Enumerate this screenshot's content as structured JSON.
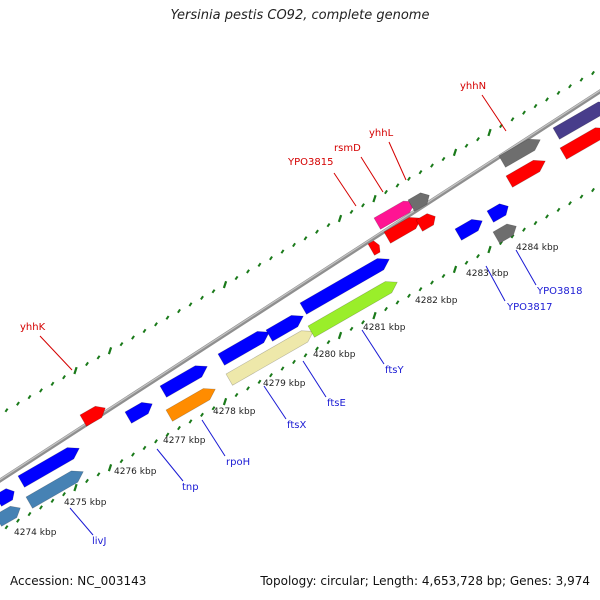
{
  "title": "Yersinia pestis CO92, complete genome",
  "footer": {
    "accession": "Accession: NC_003143",
    "summary": "Topology: circular; Length: 4,653,728 bp; Genes: 3,974"
  },
  "colors": {
    "backbone": "#8a8a8a",
    "tick": "#1a7a1a",
    "forward_label": "#d40000",
    "reverse_label": "#1a1ad4"
  },
  "scale_labels": [
    "4274 kbp",
    "4275 kbp",
    "4276 kbp",
    "4277 kbp",
    "4278 kbp",
    "4279 kbp",
    "4280 kbp",
    "4281 kbp",
    "4282 kbp",
    "4283 kbp",
    "4284 kbp"
  ],
  "labels": {
    "top": [
      "yhhK",
      "YPO3815",
      "rsmD",
      "yhhL",
      "yhhN"
    ],
    "bottom": [
      "livJ",
      "tnp",
      "rpoH",
      "ftsX",
      "ftsE",
      "ftsY",
      "YPO3817",
      "YPO3818"
    ]
  },
  "features": [
    {
      "strand": "forward",
      "color": "#ff0000"
    },
    {
      "strand": "forward",
      "color": "#ff0000"
    },
    {
      "strand": "forward",
      "color": "#ff1493"
    },
    {
      "strand": "forward",
      "color": "#6e6e6e"
    },
    {
      "strand": "forward",
      "color": "#ff0000"
    },
    {
      "strand": "forward",
      "color": "#ff0000"
    },
    {
      "strand": "forward",
      "color": "#6e6e6e"
    },
    {
      "strand": "forward",
      "color": "#ff0000"
    },
    {
      "strand": "forward",
      "color": "#483d8b"
    },
    {
      "strand": "forward",
      "color": "#ff0000"
    },
    {
      "strand": "reverse",
      "color": "#0000ff"
    },
    {
      "strand": "reverse",
      "color": "#0000ff"
    },
    {
      "strand": "reverse",
      "color": "#0000ff"
    },
    {
      "strand": "reverse",
      "color": "#0000ff"
    },
    {
      "strand": "reverse",
      "color": "#0000ff"
    },
    {
      "strand": "reverse",
      "color": "#0000ff"
    },
    {
      "strand": "reverse",
      "color": "#0000ff"
    },
    {
      "strand": "reverse",
      "color": "#0000ff"
    },
    {
      "strand": "reverse",
      "color": "#0000ff"
    },
    {
      "strand": "reverse",
      "color": "#0000ff"
    },
    {
      "strand": "reverse",
      "color": "#6e6e6e"
    },
    {
      "strand": "reverse",
      "color": "#4682b4"
    },
    {
      "strand": "reverse",
      "color": "#4682b4"
    },
    {
      "strand": "reverse",
      "color": "#ff8c00"
    },
    {
      "strand": "reverse",
      "color": "#eee8aa"
    },
    {
      "strand": "reverse",
      "color": "#9aee2a"
    }
  ]
}
